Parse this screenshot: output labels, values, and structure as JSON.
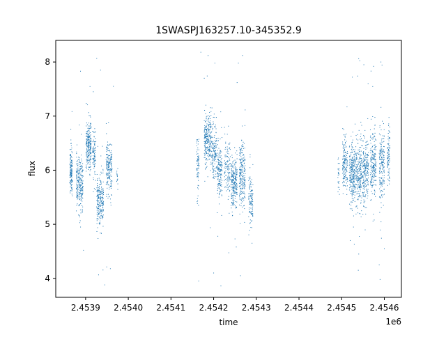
{
  "chart_data": {
    "type": "scatter",
    "title": "1SWASPJ163257.10-345352.9",
    "xlabel": "time",
    "ylabel": "flux",
    "x_offset_label": "1e6",
    "x_tick_labels": [
      "2.4539",
      "2.4540",
      "2.4541",
      "2.4542",
      "2.4543",
      "2.4544",
      "2.4545",
      "2.4546"
    ],
    "y_tick_labels": [
      "4",
      "5",
      "6",
      "7",
      "8"
    ],
    "x_tick_values": [
      2453900,
      2454000,
      2454100,
      2454200,
      2454300,
      2454400,
      2454500,
      2454600
    ],
    "y_tick_values": [
      4,
      5,
      6,
      7,
      8
    ],
    "xlim": [
      2453830,
      2454640
    ],
    "ylim": [
      3.65,
      8.4
    ],
    "grid": false,
    "marker_color": "#1f77b4",
    "marker_size": 1,
    "clusters": [
      {
        "x_center": 2453866,
        "x_spread": 3,
        "y_center": 5.98,
        "y_spread": 0.2,
        "n": 150
      },
      {
        "x_center": 2453886,
        "x_spread": 8,
        "y_center": 5.75,
        "y_spread": 0.24,
        "n": 260
      },
      {
        "x_center": 2453907,
        "x_spread": 6,
        "y_center": 6.45,
        "y_spread": 0.22,
        "n": 250
      },
      {
        "x_center": 2453920,
        "x_spread": 4,
        "y_center": 6.25,
        "y_spread": 0.22,
        "n": 90
      },
      {
        "x_center": 2453934,
        "x_spread": 8,
        "y_center": 5.42,
        "y_spread": 0.24,
        "n": 240
      },
      {
        "x_center": 2453955,
        "x_spread": 7,
        "y_center": 6.05,
        "y_spread": 0.25,
        "n": 200
      },
      {
        "x_center": 2453974,
        "x_spread": 2,
        "y_center": 5.9,
        "y_spread": 0.08,
        "n": 15
      },
      {
        "x_center": 2454163,
        "x_spread": 3,
        "y_center": 6.1,
        "y_spread": 0.28,
        "n": 70
      },
      {
        "x_center": 2454186,
        "x_spread": 8,
        "y_center": 6.55,
        "y_spread": 0.24,
        "n": 260
      },
      {
        "x_center": 2454201,
        "x_spread": 6,
        "y_center": 6.35,
        "y_spread": 0.25,
        "n": 150
      },
      {
        "x_center": 2454214,
        "x_spread": 6,
        "y_center": 5.95,
        "y_spread": 0.25,
        "n": 170
      },
      {
        "x_center": 2454232,
        "x_spread": 7,
        "y_center": 6.05,
        "y_spread": 0.25,
        "n": 120
      },
      {
        "x_center": 2454248,
        "x_spread": 7,
        "y_center": 5.78,
        "y_spread": 0.22,
        "n": 240
      },
      {
        "x_center": 2454267,
        "x_spread": 7,
        "y_center": 5.9,
        "y_spread": 0.28,
        "n": 230
      },
      {
        "x_center": 2454287,
        "x_spread": 5,
        "y_center": 5.45,
        "y_spread": 0.25,
        "n": 120
      },
      {
        "x_center": 2454493,
        "x_spread": 2,
        "y_center": 5.9,
        "y_spread": 0.15,
        "n": 25
      },
      {
        "x_center": 2454508,
        "x_spread": 6,
        "y_center": 6.1,
        "y_spread": 0.25,
        "n": 160
      },
      {
        "x_center": 2454525,
        "x_spread": 7,
        "y_center": 5.95,
        "y_spread": 0.25,
        "n": 260
      },
      {
        "x_center": 2454540,
        "x_spread": 7,
        "y_center": 5.9,
        "y_spread": 0.3,
        "n": 230
      },
      {
        "x_center": 2454556,
        "x_spread": 7,
        "y_center": 5.95,
        "y_spread": 0.3,
        "n": 230
      },
      {
        "x_center": 2454574,
        "x_spread": 7,
        "y_center": 6.1,
        "y_spread": 0.3,
        "n": 220
      },
      {
        "x_center": 2454594,
        "x_spread": 6,
        "y_center": 6.1,
        "y_spread": 0.3,
        "n": 200
      },
      {
        "x_center": 2454610,
        "x_spread": 3,
        "y_center": 6.25,
        "y_spread": 0.25,
        "n": 90
      }
    ],
    "outliers": [
      [
        2453888,
        7.83
      ],
      [
        2453926,
        8.07
      ],
      [
        2453965,
        7.55
      ],
      [
        2453895,
        4.52
      ],
      [
        2453945,
        3.88
      ],
      [
        2453958,
        4.18
      ],
      [
        2453918,
        7.45
      ],
      [
        2453935,
        7.85
      ],
      [
        2454170,
        8.18
      ],
      [
        2454187,
        8.12
      ],
      [
        2454203,
        7.98
      ],
      [
        2454165,
        3.95
      ],
      [
        2454200,
        4.1
      ],
      [
        2454217,
        3.86
      ],
      [
        2454253,
        4.58
      ],
      [
        2454263,
        4.05
      ],
      [
        2454268,
        8.12
      ],
      [
        2454258,
        7.98
      ],
      [
        2454290,
        4.65
      ],
      [
        2454540,
        4.45
      ],
      [
        2454525,
        7.72
      ],
      [
        2454552,
        7.95
      ],
      [
        2454575,
        7.92
      ],
      [
        2454592,
        8.0
      ],
      [
        2454588,
        4.25
      ],
      [
        2454590,
        3.98
      ],
      [
        2454520,
        4.7
      ],
      [
        2454600,
        4.55
      ],
      [
        2454178,
        7.7
      ],
      [
        2454255,
        7.62
      ],
      [
        2454562,
        7.6
      ],
      [
        2454539,
        4.15
      ]
    ]
  }
}
